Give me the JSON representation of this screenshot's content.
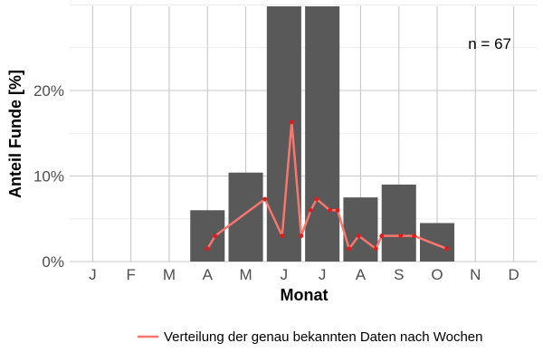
{
  "chart_data": {
    "type": "bar",
    "xlabel": "Monat",
    "ylabel": "Anteil Funde [%]",
    "categories": [
      "J",
      "F",
      "M",
      "A",
      "M",
      "J",
      "J",
      "A",
      "S",
      "O",
      "N",
      "D"
    ],
    "values": [
      0,
      0,
      0,
      6.0,
      10.4,
      30.0,
      30.0,
      7.5,
      9.0,
      4.5,
      0,
      0
    ],
    "ylim": [
      0,
      30
    ],
    "yticks": [
      0,
      10,
      20
    ],
    "ytick_labels": [
      "0%",
      "10%",
      "20%"
    ],
    "annotation": "n = 67",
    "grid": true,
    "bar_color": "#595959",
    "line_series": {
      "name": "Verteilung der genau bekannten Daten nach Wochen",
      "color": "#f8766d",
      "point_color": "#e41a1c",
      "x": [
        4.0,
        4.2,
        5.5,
        5.95,
        6.2,
        6.45,
        6.7,
        6.85,
        7.2,
        7.4,
        7.7,
        7.95,
        8.4,
        8.55,
        9.05,
        9.4,
        10.25
      ],
      "y": [
        1.5,
        3.0,
        7.3,
        3.0,
        16.3,
        3.0,
        6.0,
        7.3,
        6.0,
        6.0,
        1.5,
        3.0,
        1.5,
        3.0,
        3.0,
        3.0,
        1.5
      ]
    },
    "legend": {
      "position": "bottom",
      "label": "Verteilung der genau bekannten Daten nach Wochen"
    }
  }
}
